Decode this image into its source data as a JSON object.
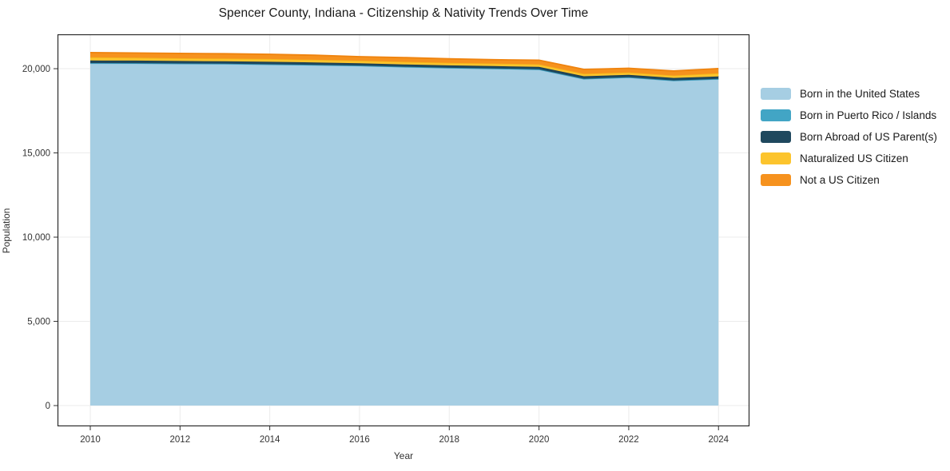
{
  "chart_data": {
    "type": "area",
    "stacked": true,
    "title": "Spencer County, Indiana - Citizenship & Nativity Trends Over Time",
    "xlabel": "Year",
    "ylabel": "Population",
    "grid": true,
    "legend_position": "right",
    "x": [
      2010,
      2011,
      2012,
      2013,
      2014,
      2015,
      2016,
      2017,
      2018,
      2019,
      2020,
      2021,
      2022,
      2023,
      2024
    ],
    "x_ticks": [
      2010,
      2012,
      2014,
      2016,
      2018,
      2020,
      2022,
      2024
    ],
    "y_ticks": [
      0,
      5000,
      10000,
      15000,
      20000
    ],
    "xlim": [
      2009.27,
      2024.69
    ],
    "ylim": [
      -1230,
      22040
    ],
    "frame_color": "#2a2a2a",
    "grid_color": "#ebebeb",
    "series": [
      {
        "name": "Born in the United States",
        "color": "#a6cee3",
        "line_color": "#8fc3de",
        "values": [
          20310,
          20310,
          20290,
          20280,
          20250,
          20215,
          20170,
          20100,
          20040,
          20000,
          19950,
          19390,
          19480,
          19290,
          19380
        ]
      },
      {
        "name": "Born in Puerto Rico / Islands",
        "color": "#42a5c5",
        "line_color": "#3595b5",
        "values": [
          25,
          20,
          20,
          20,
          15,
          15,
          15,
          15,
          15,
          15,
          15,
          15,
          15,
          15,
          15
        ]
      },
      {
        "name": "Born Abroad of US Parent(s)",
        "color": "#1f485e",
        "line_color": "#193d50",
        "values": [
          150,
          150,
          145,
          140,
          145,
          140,
          140,
          140,
          140,
          140,
          145,
          145,
          140,
          145,
          145
        ]
      },
      {
        "name": "Naturalized US Citizen",
        "color": "#fcc42d",
        "line_color": "#f5b71b",
        "values": [
          190,
          170,
          165,
          160,
          165,
          160,
          150,
          150,
          150,
          150,
          150,
          145,
          140,
          145,
          185
        ]
      },
      {
        "name": "Not a US Citizen",
        "color": "#f6921e",
        "line_color": "#ef830e",
        "values": [
          280,
          280,
          285,
          290,
          280,
          270,
          240,
          255,
          245,
          230,
          245,
          265,
          250,
          270,
          280
        ]
      }
    ]
  }
}
